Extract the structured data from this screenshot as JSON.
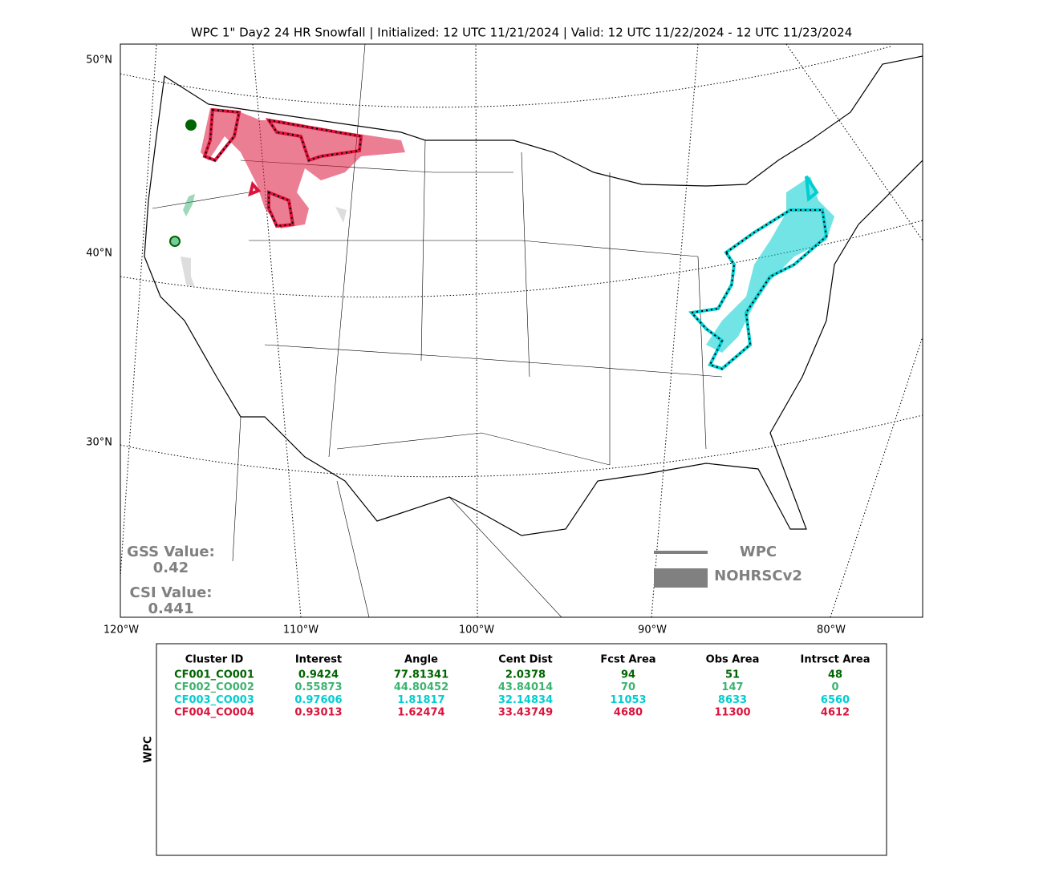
{
  "title": "WPC 1\" Day2 24 HR Snowfall | Initialized: 12 UTC 11/21/2024 | Valid: 12 UTC 11/22/2024 - 12 UTC 11/23/2024",
  "map": {
    "lat_labels": [
      "50°N",
      "40°N",
      "30°N"
    ],
    "lon_labels": [
      "120°W",
      "110°W",
      "100°W",
      "90°W",
      "80°W"
    ],
    "gss_label": "GSS Value:",
    "gss_value": 0.42,
    "csi_label": "CSI Value:",
    "csi_value": 0.441,
    "legend": [
      "WPC",
      "NOHRSCv2"
    ]
  },
  "table": {
    "side_label": "WPC",
    "columns": [
      "Cluster ID",
      "Interest",
      "Angle",
      "Cent Dist",
      "Fcst Area",
      "Obs Area",
      "Intrsct Area"
    ],
    "rows": [
      {
        "color": "#006400",
        "cells": [
          "CF001_CO001",
          0.9424,
          77.81341,
          2.0378,
          94,
          51,
          48
        ]
      },
      {
        "color": "#3cb371",
        "cells": [
          "CF002_CO002",
          0.55873,
          44.80452,
          43.84014,
          70,
          147,
          0
        ]
      },
      {
        "color": "#00ced1",
        "cells": [
          "CF003_CO003",
          0.97606,
          1.81817,
          32.14834,
          11053,
          8633,
          6560
        ]
      },
      {
        "color": "#dc143c",
        "cells": [
          "CF004_CO004",
          0.93013,
          1.62474,
          33.43749,
          4680,
          11300,
          4612
        ]
      }
    ]
  }
}
